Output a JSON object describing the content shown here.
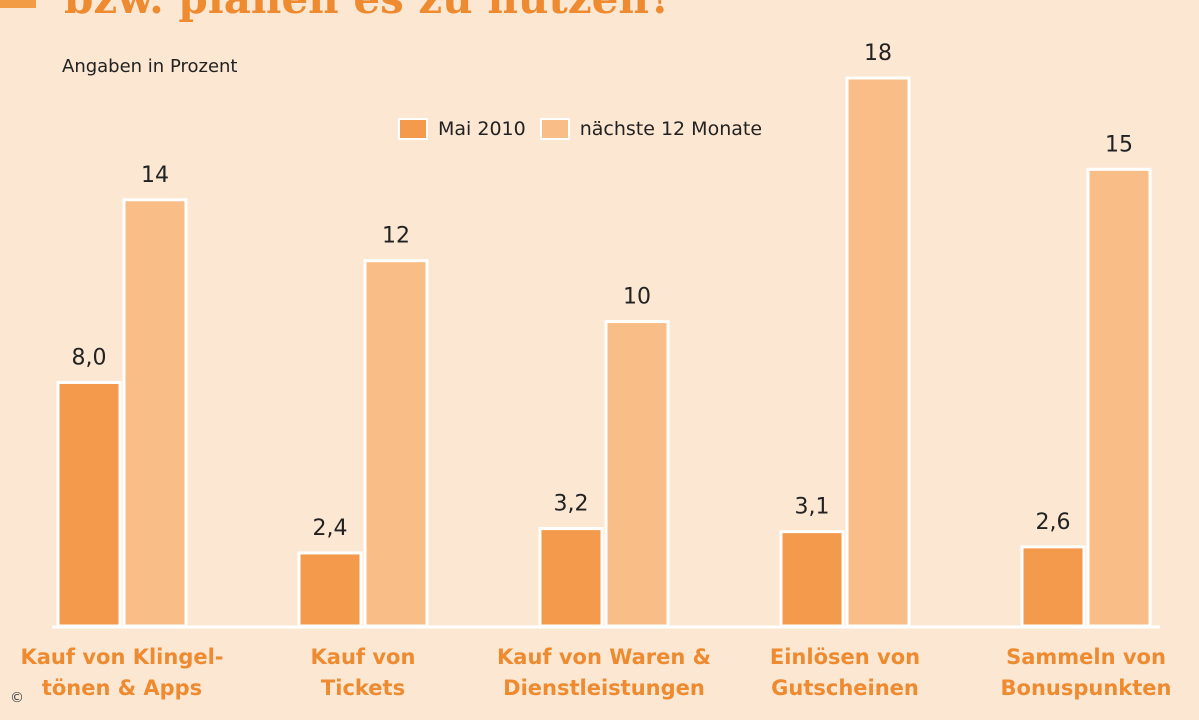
{
  "page": {
    "title": "bzw. planen es zu nutzen?",
    "subtitle": "Angaben in Prozent",
    "copyright_symbol": "©"
  },
  "colors": {
    "background": "#fbe7d2",
    "series_1": "#f49a4c",
    "series_2": "#f9bd87",
    "category_text": "#ee8a2f",
    "value_text": "#222222"
  },
  "chart_data": {
    "type": "bar",
    "title": "bzw. planen es zu nutzen?",
    "subtitle": "Angaben in Prozent",
    "xlabel": "",
    "ylabel": "",
    "ylim": [
      0,
      20
    ],
    "grid": false,
    "legend_position": "top-center",
    "categories": [
      [
        "Kauf von Klingel-",
        "tönen & Apps"
      ],
      [
        "Kauf von",
        "Tickets"
      ],
      [
        "Kauf von Waren &",
        "Dienstleistungen"
      ],
      [
        "Einlösen von",
        "Gutscheinen"
      ],
      [
        "Sammeln von",
        "Bonuspunkten"
      ]
    ],
    "series": [
      {
        "name": "Mai 2010",
        "values": [
          8.0,
          2.4,
          3.2,
          3.1,
          2.6
        ],
        "labels": [
          "8,0",
          "2,4",
          "3,2",
          "3,1",
          "2,6"
        ]
      },
      {
        "name": "nächste 12 Monate",
        "values": [
          14,
          12,
          10,
          18,
          15
        ],
        "labels": [
          "14",
          "12",
          "10",
          "18",
          "15"
        ]
      }
    ]
  }
}
